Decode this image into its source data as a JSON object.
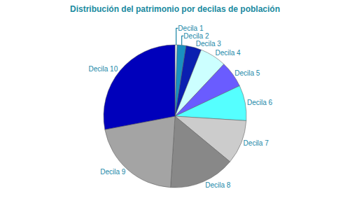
{
  "chart_data": {
    "type": "pie",
    "title": "Distribución del patrimonio por decilas de población",
    "categories": [
      "Decila 1",
      "Decila 2",
      "Decila 3",
      "Decila 4",
      "Decila 5",
      "Decila 6",
      "Decila 7",
      "Decila 8",
      "Decila 9",
      "Decila 10"
    ],
    "values": [
      0.5,
      2,
      3.5,
      6,
      6,
      8,
      10,
      15,
      21,
      28
    ],
    "colors": [
      "#e8f4f8",
      "#1a90c0",
      "#0a1fb0",
      "#ccffff",
      "#6a5cff",
      "#55ffff",
      "#cccccc",
      "#888888",
      "#a4a4a4",
      "#0000bb"
    ]
  }
}
